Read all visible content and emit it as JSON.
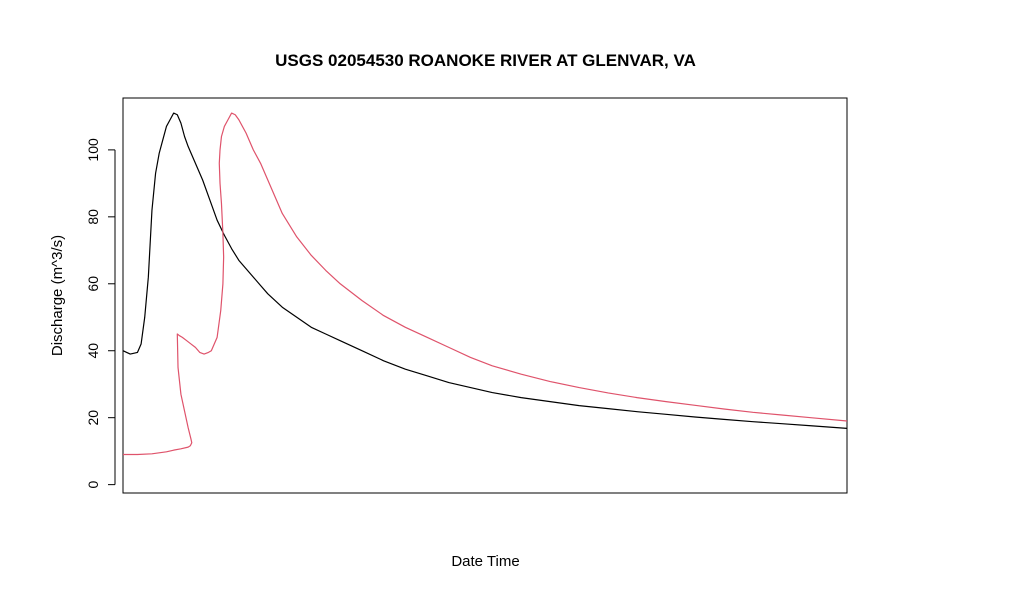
{
  "chart_data": {
    "type": "line",
    "title": "USGS 02054530 ROANOKE RIVER AT GLENVAR, VA",
    "xlabel": "Date Time",
    "ylabel": "Discharge (m^3/s)",
    "ylim": [
      -2.5,
      115.5
    ],
    "xlim": [
      0,
      1
    ],
    "yticks": [
      0,
      20,
      40,
      60,
      80,
      100
    ],
    "ytick_labels": [
      "0",
      "20",
      "40",
      "60",
      "80",
      "100"
    ],
    "xticks": [],
    "grid": false,
    "legend": "none",
    "series": [
      {
        "color": "#000000",
        "x": [
          0.0,
          0.01,
          0.02,
          0.025,
          0.03,
          0.035,
          0.04,
          0.045,
          0.05,
          0.055,
          0.06,
          0.065,
          0.07,
          0.075,
          0.08,
          0.085,
          0.09,
          0.095,
          0.1,
          0.11,
          0.12,
          0.13,
          0.14,
          0.15,
          0.16,
          0.17,
          0.18,
          0.19,
          0.2,
          0.22,
          0.24,
          0.26,
          0.28,
          0.3,
          0.33,
          0.36,
          0.39,
          0.42,
          0.45,
          0.48,
          0.51,
          0.55,
          0.59,
          0.63,
          0.67,
          0.71,
          0.75,
          0.79,
          0.83,
          0.87,
          0.91,
          0.95,
          1.0
        ],
        "y": [
          40,
          39,
          39.5,
          42,
          50,
          62,
          82,
          93,
          99,
          103,
          107,
          109,
          111,
          110.5,
          108,
          104,
          101,
          98.5,
          96,
          91,
          85,
          79,
          74.5,
          70.5,
          67,
          64.5,
          62,
          59.5,
          57,
          53,
          50,
          47,
          45,
          43,
          40,
          37,
          34.5,
          32.5,
          30.5,
          29,
          27.5,
          26,
          24.8,
          23.6,
          22.7,
          21.8,
          21,
          20.2,
          19.5,
          18.8,
          18.2,
          17.6,
          16.8
        ]
      },
      {
        "color": "#df536b",
        "x": [
          0.0,
          0.02,
          0.04,
          0.06,
          0.07,
          0.08,
          0.09,
          0.093,
          0.095,
          0.094,
          0.09,
          0.085,
          0.08,
          0.076,
          0.075,
          0.078,
          0.082,
          0.088,
          0.094,
          0.1,
          0.106,
          0.112,
          0.118,
          0.122,
          0.13,
          0.135,
          0.138,
          0.139,
          0.138,
          0.136,
          0.134,
          0.133,
          0.134,
          0.136,
          0.14,
          0.145,
          0.15,
          0.155,
          0.16,
          0.17,
          0.18,
          0.19,
          0.2,
          0.21,
          0.22,
          0.24,
          0.26,
          0.28,
          0.3,
          0.33,
          0.36,
          0.39,
          0.42,
          0.45,
          0.48,
          0.51,
          0.55,
          0.59,
          0.63,
          0.67,
          0.71,
          0.75,
          0.79,
          0.83,
          0.87,
          0.91,
          0.95,
          1.0
        ],
        "y": [
          9,
          9,
          9.2,
          9.8,
          10.3,
          10.7,
          11.2,
          11.6,
          12.5,
          13.5,
          17,
          22,
          27,
          35,
          45,
          44.5,
          44,
          43,
          42,
          41,
          39.5,
          39,
          39.5,
          40,
          44,
          52,
          60,
          68,
          75,
          84,
          90,
          96,
          100,
          104,
          107,
          109,
          111,
          110.5,
          109,
          105,
          100,
          96,
          91,
          86,
          81,
          74,
          68.5,
          64,
          60,
          55,
          50.5,
          47,
          44,
          41,
          38,
          35.5,
          33,
          30.8,
          29,
          27.4,
          26,
          24.8,
          23.7,
          22.6,
          21.6,
          20.8,
          20,
          19
        ]
      }
    ]
  }
}
